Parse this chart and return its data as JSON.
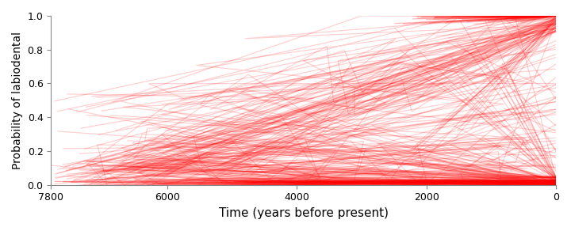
{
  "title": "",
  "xlabel": "Time (years before present)",
  "ylabel": "Probability of labiodental",
  "xlim": [
    7800,
    0
  ],
  "ylim": [
    0.0,
    1.0
  ],
  "xticks": [
    7800,
    6000,
    4000,
    2000,
    0
  ],
  "yticks": [
    0.0,
    0.2,
    0.4,
    0.6,
    0.8,
    1.0
  ],
  "line_color": "#FF0000",
  "line_alpha": 0.18,
  "line_width": 0.9,
  "background_color": "#FFFFFF",
  "seed": 42
}
